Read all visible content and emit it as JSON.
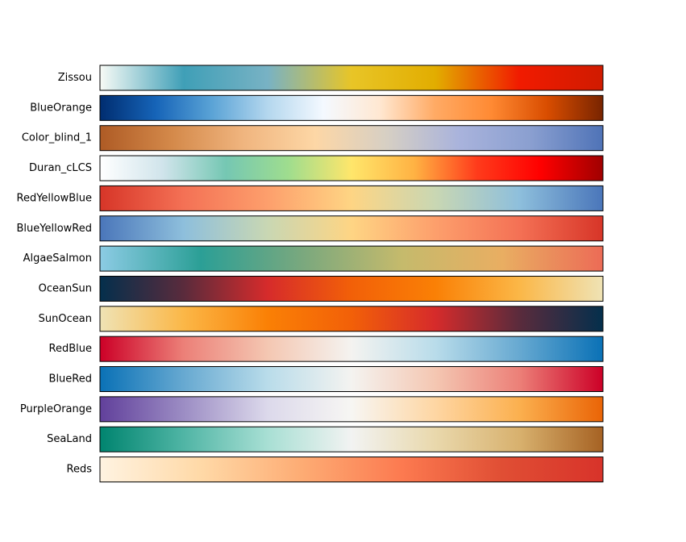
{
  "chart_data": {
    "type": "heatmap",
    "title": "",
    "xlabel": "",
    "ylabel": "",
    "axes_visible": false,
    "colormaps": [
      {
        "name": "Zissou",
        "stops": [
          "#f8fbf6",
          "#3f9fb7",
          "#78b2c4",
          "#e8c527",
          "#e2ad00",
          "#f11b00",
          "#d01b00"
        ]
      },
      {
        "name": "BlueOrange",
        "stops": [
          "#002d70",
          "#1664b8",
          "#5aa3d6",
          "#b4d7ee",
          "#f4f9ff",
          "#ffe8d2",
          "#ffaa64",
          "#ff8a33",
          "#d94d00",
          "#782400"
        ]
      },
      {
        "name": "Color_blind_1",
        "stops": [
          "#ae5b25",
          "#d4894a",
          "#f0b57f",
          "#fdd7a6",
          "#d6cfc4",
          "#a9b3dc",
          "#8a9fd0",
          "#4f73b7"
        ]
      },
      {
        "name": "Duran_cLCS",
        "stops": [
          "#ffffff",
          "#d0e4eb",
          "#75c7b3",
          "#9fdd8e",
          "#ffe66b",
          "#ffb243",
          "#ff3b1b",
          "#ff0000",
          "#a00000"
        ]
      },
      {
        "name": "RedYellowBlue",
        "stops": [
          "#d73528",
          "#f47155",
          "#fd9f6c",
          "#fed584",
          "#c9d7b3",
          "#8ebfdc",
          "#4a76ba"
        ]
      },
      {
        "name": "BlueYellowRed",
        "stops": [
          "#4a76ba",
          "#8ebfdc",
          "#c9d7b3",
          "#fed584",
          "#fd9f6c",
          "#f47155",
          "#d73528"
        ]
      },
      {
        "name": "AlgaeSalmon",
        "stops": [
          "#8ccbe4",
          "#2b9f96",
          "#79a87e",
          "#c5ba6c",
          "#e9ae62",
          "#ec6b56"
        ]
      },
      {
        "name": "OceanSun",
        "stops": [
          "#042f4c",
          "#5a2b3c",
          "#d62b2b",
          "#f26008",
          "#fa8005",
          "#fbb747",
          "#efe3b5"
        ]
      },
      {
        "name": "SunOcean",
        "stops": [
          "#efe3b5",
          "#fbb747",
          "#fa8005",
          "#f26008",
          "#d62b2b",
          "#5a2b3c",
          "#042f4c"
        ]
      },
      {
        "name": "RedBlue",
        "stops": [
          "#cc0027",
          "#ec8078",
          "#f4c7b2",
          "#f4f3f0",
          "#b9dcea",
          "#67a9d1",
          "#0a71b6"
        ]
      },
      {
        "name": "BlueRed",
        "stops": [
          "#0a71b6",
          "#67a9d1",
          "#b9dcea",
          "#f4f3f0",
          "#f4c7b2",
          "#ec8078",
          "#cc0027"
        ]
      },
      {
        "name": "PurpleOrange",
        "stops": [
          "#61409b",
          "#9c8dc4",
          "#dcd9eb",
          "#f7f6f3",
          "#fed6a3",
          "#fbb04f",
          "#ea6406"
        ]
      },
      {
        "name": "SeaLand",
        "stops": [
          "#00846f",
          "#50b5a5",
          "#a8dfd4",
          "#f2f3f2",
          "#e9d8ac",
          "#d8b16e",
          "#a66223"
        ]
      },
      {
        "name": "Reds",
        "stops": [
          "#fff3e1",
          "#ffd9a7",
          "#fdac74",
          "#fc7a50",
          "#e04e34",
          "#d8332a"
        ]
      }
    ]
  }
}
